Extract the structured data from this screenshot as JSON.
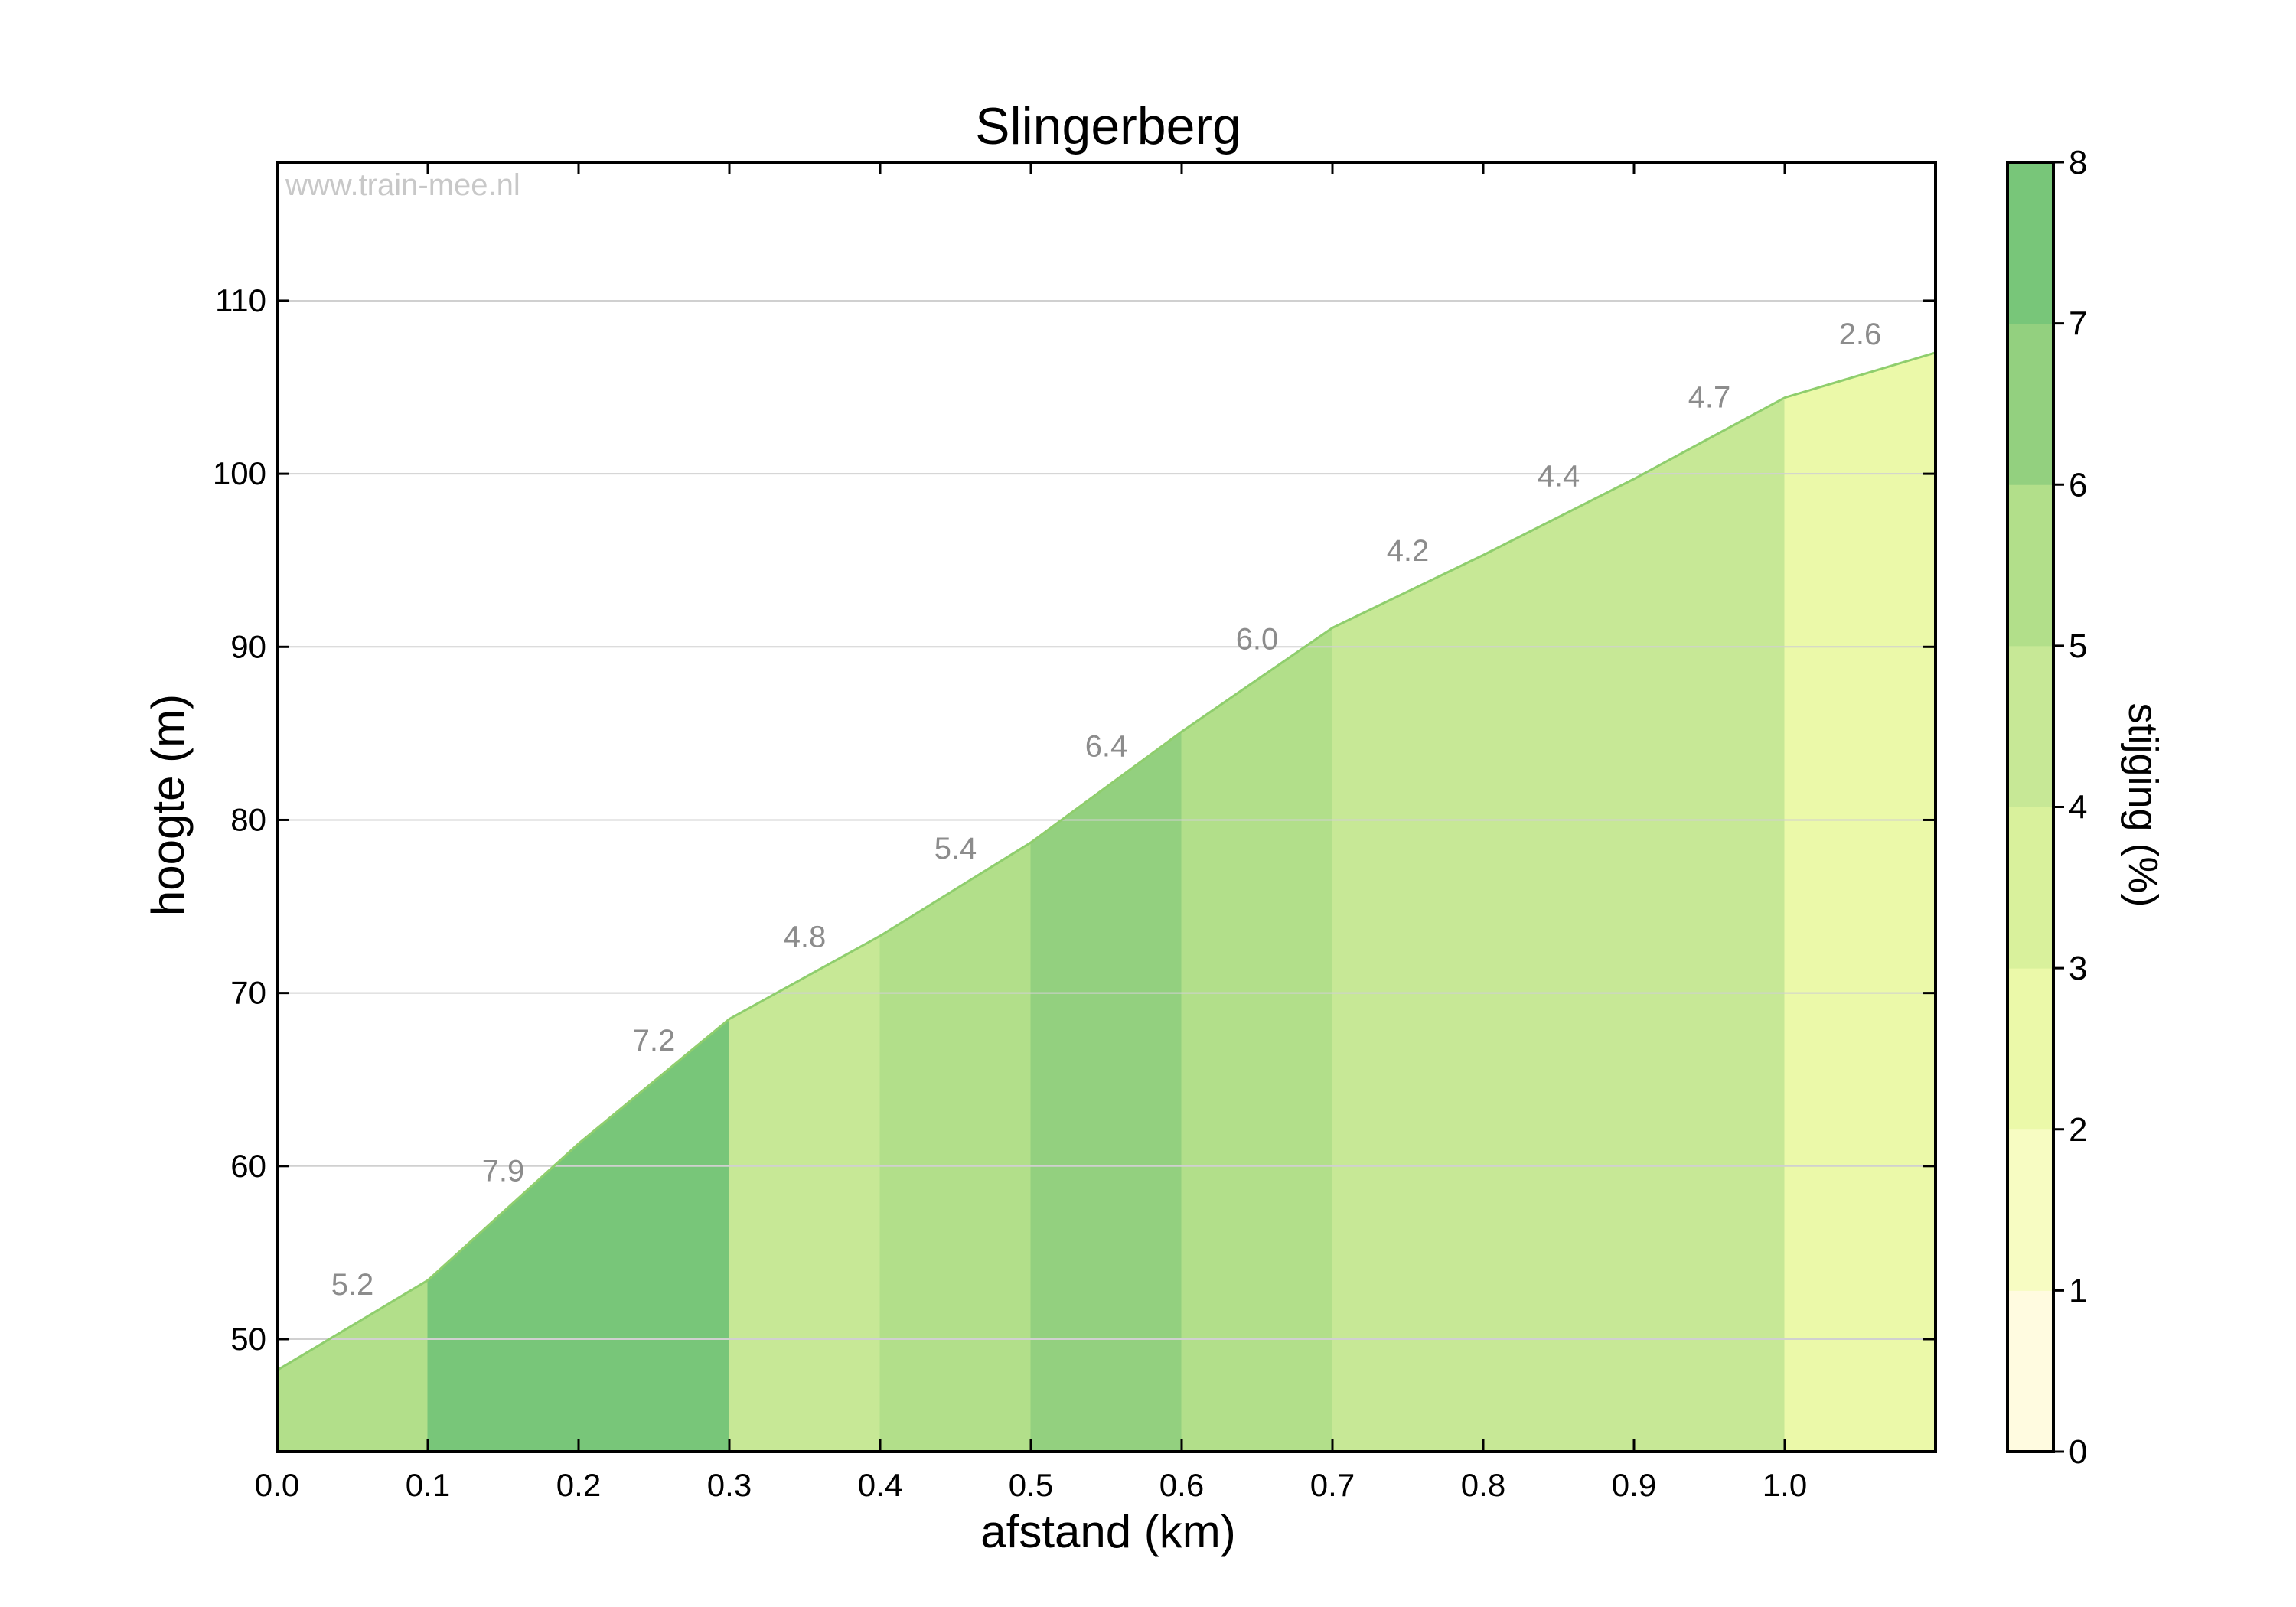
{
  "chart_data": {
    "type": "area",
    "title": "Slingerberg",
    "xlabel": "afstand (km)",
    "ylabel": "hoogte (m)",
    "xlim": [
      0.0,
      1.1
    ],
    "ylim": [
      43.5,
      118
    ],
    "x_ticks": [
      "0.0",
      "0.1",
      "0.2",
      "0.3",
      "0.4",
      "0.5",
      "0.6",
      "0.7",
      "0.8",
      "0.9",
      "1.0"
    ],
    "y_ticks": [
      "50",
      "60",
      "70",
      "80",
      "90",
      "100",
      "110"
    ],
    "grid": "horizontal",
    "watermark": "www.train-mee.nl",
    "series": [
      {
        "x": [
          0.0,
          0.1,
          0.2,
          0.3,
          0.4,
          0.5,
          0.6,
          0.7,
          0.8,
          0.9,
          1.0,
          1.1
        ],
        "values": [
          48.2,
          53.4,
          61.3,
          68.5,
          73.3,
          78.7,
          85.1,
          91.1,
          95.3,
          99.7,
          104.4,
          107.0
        ]
      }
    ],
    "segment_gradients": [
      {
        "x0": 0.0,
        "x1": 0.1,
        "label": "5.2",
        "color": "#b2df8a"
      },
      {
        "x0": 0.1,
        "x1": 0.2,
        "label": "7.9",
        "color": "#78c679"
      },
      {
        "x0": 0.2,
        "x1": 0.3,
        "label": "7.2",
        "color": "#78c679"
      },
      {
        "x0": 0.3,
        "x1": 0.4,
        "label": "4.8",
        "color": "#c7e896"
      },
      {
        "x0": 0.4,
        "x1": 0.5,
        "label": "5.4",
        "color": "#b2df8a"
      },
      {
        "x0": 0.5,
        "x1": 0.6,
        "label": "6.4",
        "color": "#93d07f"
      },
      {
        "x0": 0.6,
        "x1": 0.7,
        "label": "6.0",
        "color": "#b2df8a"
      },
      {
        "x0": 0.7,
        "x1": 0.8,
        "label": "4.2",
        "color": "#c7e896"
      },
      {
        "x0": 0.8,
        "x1": 0.9,
        "label": "4.4",
        "color": "#c7e896"
      },
      {
        "x0": 0.9,
        "x1": 1.0,
        "label": "4.7",
        "color": "#c7e896"
      },
      {
        "x0": 1.0,
        "x1": 1.1,
        "label": "2.6",
        "color": "#ebf9a9"
      }
    ],
    "colorbar": {
      "label": "stijging (%)",
      "range": [
        0,
        8
      ],
      "ticks": [
        "0",
        "1",
        "2",
        "3",
        "4",
        "5",
        "6",
        "7",
        "8"
      ],
      "bands": [
        "#fffbe0",
        "#f7fcc2",
        "#ebf9a9",
        "#d9f19c",
        "#c7e896",
        "#b2df8a",
        "#93d07f",
        "#78c679"
      ]
    },
    "outline_color": "#8fce6d"
  }
}
